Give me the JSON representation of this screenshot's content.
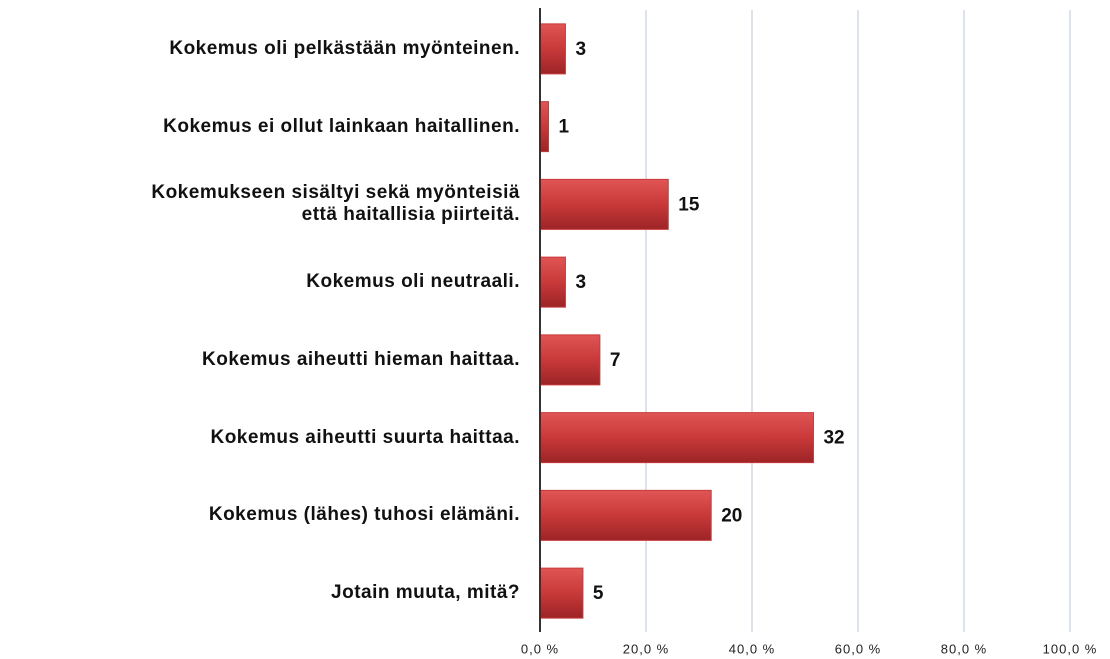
{
  "chart_data": {
    "type": "barh",
    "categories": [
      "Kokemus oli pelkästään myönteinen.",
      "Kokemus ei ollut lainkaan haitallinen.",
      "Kokemukseen sisältyi sekä myönteisiä\nettä haitallisia piirteitä.",
      "Kokemus oli neutraali.",
      "Kokemus aiheutti hieman haittaa.",
      "Kokemus aiheutti suurta haittaa.",
      "Kokemus (lähes) tuhosi elämäni.",
      "Jotain muuta, mitä?"
    ],
    "values": [
      4.8,
      1.6,
      24.2,
      4.8,
      11.3,
      51.6,
      32.3,
      8.1
    ],
    "data_labels": [
      "3",
      "1",
      "15",
      "3",
      "7",
      "32",
      "20",
      "5"
    ],
    "color": "#c9393a",
    "xlim": [
      0,
      100
    ],
    "xticks": [
      {
        "value": 0,
        "label": "0,0 %"
      },
      {
        "value": 20,
        "label": "20,0 %"
      },
      {
        "value": 40,
        "label": "40,0 %"
      },
      {
        "value": 60,
        "label": "60,0 %"
      },
      {
        "value": 80,
        "label": "80,0 %"
      },
      {
        "value": 100,
        "label": "100,0 %"
      }
    ],
    "grid": true
  }
}
